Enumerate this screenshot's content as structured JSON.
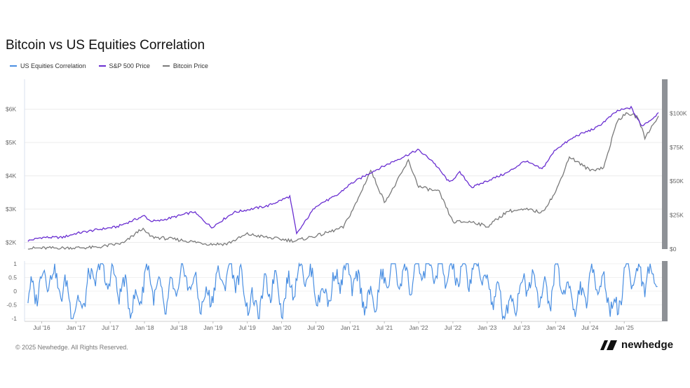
{
  "title": "Bitcoin vs US Equities Correlation",
  "legend": [
    {
      "label": "US Equities Correlation",
      "color": "#4a8fe2"
    },
    {
      "label": "S&P 500 Price",
      "color": "#6a2fd1"
    },
    {
      "label": "Bitcoin Price",
      "color": "#7a7a7a"
    }
  ],
  "footer": "© 2025 Newhedge. All Rights Reserved.",
  "brand": "newhedge",
  "chart_data": {
    "type": "line",
    "x_ticks": [
      "Jul '16",
      "Jan '17",
      "Jul '17",
      "Jan '18",
      "Jul '18",
      "Jan '19",
      "Jul '19",
      "Jan '20",
      "Jul '20",
      "Jan '21",
      "Jul '21",
      "Jan '22",
      "Jul '22",
      "Jan '23",
      "Jul '23",
      "Jan '24",
      "Jul '24",
      "Jan '25"
    ],
    "left_axis_ticks": [
      "$2K",
      "$3K",
      "$4K",
      "$5K",
      "$6K"
    ],
    "right_axis_ticks": [
      "$0",
      "$25K",
      "$50K",
      "$75K",
      "$100K"
    ],
    "correlation_axis_ticks": [
      "1",
      "0.5",
      "0",
      "-0.5",
      "-1"
    ],
    "x_range": [
      2016.25,
      2025.55
    ],
    "left_ylim": [
      1800,
      6900
    ],
    "right_ylim": [
      0,
      125000
    ],
    "correlation_ylim": [
      -1.1,
      1.1
    ],
    "series": [
      {
        "name": "S&P 500 Price",
        "axis": "left",
        "x": [
          2016.3,
          2016.5,
          2016.8,
          2017.0,
          2017.3,
          2017.6,
          2018.0,
          2018.08,
          2018.2,
          2018.5,
          2018.72,
          2018.98,
          2019.3,
          2019.5,
          2019.8,
          2020.12,
          2020.22,
          2020.5,
          2020.8,
          2021.0,
          2021.3,
          2021.6,
          2021.99,
          2022.2,
          2022.45,
          2022.6,
          2022.78,
          2023.0,
          2023.3,
          2023.55,
          2023.8,
          2024.0,
          2024.3,
          2024.6,
          2024.9,
          2025.1,
          2025.25,
          2025.4,
          2025.5
        ],
        "y": [
          2050,
          2150,
          2150,
          2270,
          2380,
          2470,
          2800,
          2650,
          2640,
          2800,
          2920,
          2450,
          2900,
          2980,
          3100,
          3380,
          2250,
          3100,
          3400,
          3750,
          4100,
          4400,
          4780,
          4450,
          3800,
          4100,
          3650,
          3850,
          4100,
          4450,
          4200,
          4800,
          5200,
          5450,
          5950,
          6050,
          5500,
          5700,
          5900
        ]
      },
      {
        "name": "Bitcoin Price",
        "axis": "right",
        "x": [
          2016.3,
          2016.8,
          2017.3,
          2017.7,
          2017.96,
          2018.1,
          2018.5,
          2018.95,
          2019.2,
          2019.5,
          2019.8,
          2020.0,
          2020.2,
          2020.6,
          2020.9,
          2021.1,
          2021.3,
          2021.5,
          2021.6,
          2021.85,
          2022.0,
          2022.3,
          2022.5,
          2022.8,
          2023.0,
          2023.3,
          2023.6,
          2023.8,
          2024.0,
          2024.2,
          2024.5,
          2024.7,
          2024.9,
          2025.05,
          2025.2,
          2025.3,
          2025.5
        ],
        "y": [
          600,
          800,
          1200,
          4500,
          15000,
          9000,
          6800,
          3700,
          3800,
          11000,
          8500,
          7200,
          6000,
          11000,
          16000,
          35000,
          58000,
          35000,
          42000,
          65000,
          46000,
          42000,
          20000,
          20000,
          16500,
          28000,
          29000,
          27000,
          42000,
          68000,
          58000,
          60000,
          95000,
          100000,
          97000,
          82000,
          98000
        ]
      },
      {
        "name": "US Equities Correlation",
        "axis": "correlation",
        "x": [
          2016.3,
          2016.6,
          2016.9,
          2017.0,
          2017.3,
          2017.6,
          2017.9,
          2018.0,
          2018.3,
          2018.6,
          2018.9,
          2019.0,
          2019.3,
          2019.6,
          2019.9,
          2020.0,
          2020.3,
          2020.6,
          2020.9,
          2021.0,
          2021.3,
          2021.6,
          2021.9,
          2022.0,
          2022.3,
          2022.6,
          2022.9,
          2023.0,
          2023.3,
          2023.6,
          2023.9,
          2024.0,
          2024.3,
          2024.6,
          2024.9,
          2025.0,
          2025.3,
          2025.5
        ],
        "y": [
          -0.3,
          0.7,
          -0.2,
          -0.8,
          0.8,
          0.3,
          -0.6,
          0.7,
          -0.4,
          0.6,
          -0.5,
          0.2,
          0.8,
          -0.7,
          0.5,
          -0.4,
          0.9,
          -0.3,
          0.7,
          0.6,
          -0.5,
          0.8,
          0.4,
          0.9,
          0.7,
          0.6,
          0.8,
          0.2,
          -0.7,
          0.5,
          -0.3,
          0.7,
          -0.5,
          0.6,
          -0.8,
          0.7,
          0.5,
          0.6
        ]
      }
    ]
  }
}
